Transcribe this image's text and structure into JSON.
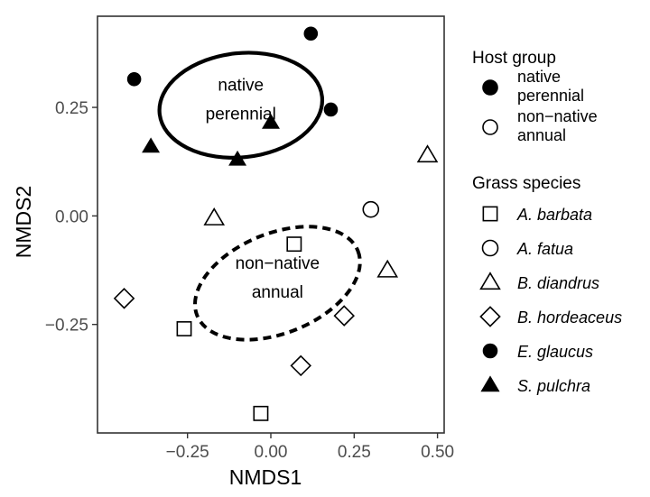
{
  "chart_data": {
    "type": "scatter",
    "xlabel": "NMDS1",
    "ylabel": "NMDS2",
    "xlim": [
      -0.52,
      0.52
    ],
    "ylim": [
      -0.5,
      0.46
    ],
    "x_ticks": [
      -0.25,
      0.0,
      0.25,
      0.5
    ],
    "x_tick_labels": [
      "-0.25",
      "0.00",
      "0.25",
      "0.50"
    ],
    "y_ticks": [
      -0.25,
      0.0,
      0.25
    ],
    "y_tick_labels": [
      "-0.25",
      "0.00",
      "0.25"
    ],
    "grid": false,
    "legend_position": "right",
    "points": [
      {
        "species": "A. barbata",
        "host_group": "non-native annual",
        "x": 0.07,
        "y": -0.065
      },
      {
        "species": "A. barbata",
        "host_group": "non-native annual",
        "x": -0.26,
        "y": -0.26
      },
      {
        "species": "A. barbata",
        "host_group": "non-native annual",
        "x": -0.03,
        "y": -0.455
      },
      {
        "species": "A. fatua",
        "host_group": "non-native annual",
        "x": 0.3,
        "y": 0.015
      },
      {
        "species": "B. diandrus",
        "host_group": "non-native annual",
        "x": -0.17,
        "y": -0.005
      },
      {
        "species": "B. diandrus",
        "host_group": "non-native annual",
        "x": 0.35,
        "y": -0.125
      },
      {
        "species": "B. diandrus",
        "host_group": "non-native annual",
        "x": 0.47,
        "y": 0.14
      },
      {
        "species": "B. hordeaceus",
        "host_group": "non-native annual",
        "x": -0.44,
        "y": -0.19
      },
      {
        "species": "B. hordeaceus",
        "host_group": "non-native annual",
        "x": 0.22,
        "y": -0.23
      },
      {
        "species": "B. hordeaceus",
        "host_group": "non-native annual",
        "x": 0.09,
        "y": -0.345
      },
      {
        "species": "E. glaucus",
        "host_group": "native perennial",
        "x": -0.41,
        "y": 0.315
      },
      {
        "species": "E. glaucus",
        "host_group": "native perennial",
        "x": 0.12,
        "y": 0.42
      },
      {
        "species": "E. glaucus",
        "host_group": "native perennial",
        "x": 0.18,
        "y": 0.245
      },
      {
        "species": "S. pulchra",
        "host_group": "native perennial",
        "x": -0.36,
        "y": 0.16
      },
      {
        "species": "S. pulchra",
        "host_group": "native perennial",
        "x": -0.1,
        "y": 0.13
      },
      {
        "species": "S. pulchra",
        "host_group": "native perennial",
        "x": 0.0,
        "y": 0.215
      }
    ],
    "ellipses": [
      {
        "group": "native perennial",
        "label_lines": [
          "native",
          "perennial"
        ],
        "style": "solid",
        "cx": -0.09,
        "cy": 0.255,
        "rx": 0.245,
        "ry": 0.12,
        "angle": 6
      },
      {
        "group": "non-native annual",
        "label_lines": [
          "non−native",
          "annual"
        ],
        "style": "dashed",
        "cx": 0.02,
        "cy": -0.155,
        "rx": 0.26,
        "ry": 0.115,
        "angle": 22
      }
    ],
    "legend": {
      "host_group": {
        "title": "Host group",
        "items": [
          {
            "label_lines": [
              "native",
              "perennial"
            ],
            "shape": "circle",
            "filled": true
          },
          {
            "label_lines": [
              "non−native",
              "annual"
            ],
            "shape": "circle",
            "filled": false
          }
        ]
      },
      "species": {
        "title": "Grass species",
        "items": [
          {
            "label": "A. barbata",
            "shape": "square",
            "filled": false
          },
          {
            "label": "A. fatua",
            "shape": "circle",
            "filled": false
          },
          {
            "label": "B. diandrus",
            "shape": "triangle",
            "filled": false
          },
          {
            "label": "B. hordeaceus",
            "shape": "diamond",
            "filled": false
          },
          {
            "label": "E. glaucus",
            "shape": "circle",
            "filled": true
          },
          {
            "label": "S. pulchra",
            "shape": "triangle",
            "filled": true
          }
        ]
      }
    }
  },
  "colors": {
    "marker": "#000000",
    "panel_border": "#333333",
    "tick_label": "#4d4d4d"
  }
}
